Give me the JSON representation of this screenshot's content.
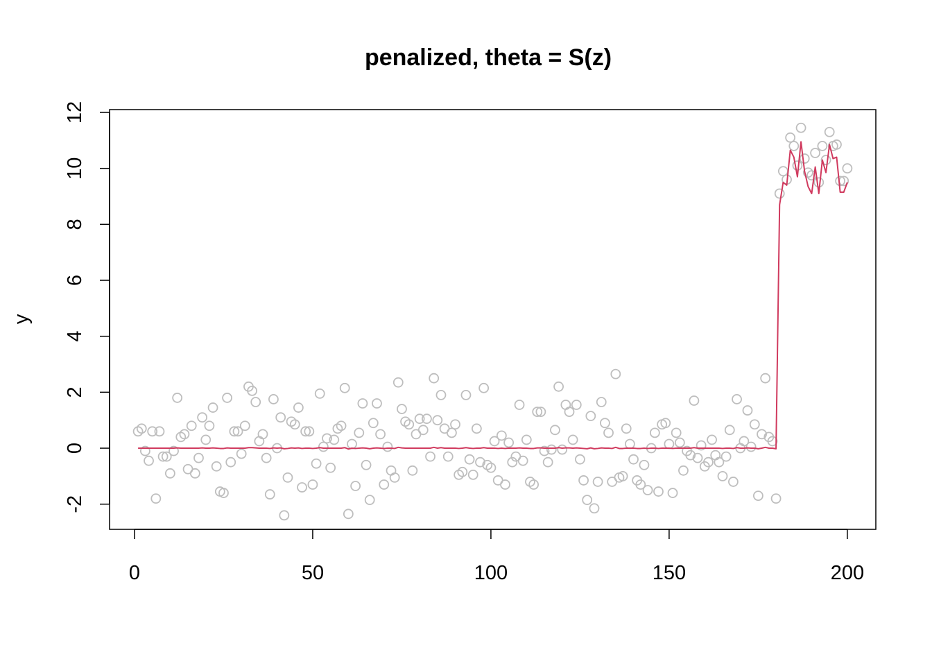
{
  "chart_data": {
    "type": "scatter",
    "title": "penalized, theta = S(z)",
    "xlabel": "",
    "ylabel": "y",
    "xlim": [
      -7,
      208
    ],
    "ylim": [
      -2.9,
      12.1
    ],
    "xticks": [
      0,
      50,
      100,
      150,
      200
    ],
    "yticks": [
      -2,
      0,
      2,
      4,
      6,
      8,
      10,
      12
    ],
    "grid": false,
    "legend": "none",
    "colors": {
      "points": "#bebebe",
      "line": "#d03a5e",
      "axes": "#000000"
    },
    "series": [
      {
        "kind": "points",
        "x": [
          1,
          2,
          3,
          4,
          5,
          6,
          7,
          8,
          9,
          10,
          11,
          12,
          13,
          14,
          15,
          16,
          17,
          18,
          19,
          20,
          21,
          22,
          23,
          24,
          25,
          26,
          27,
          28,
          29,
          30,
          31,
          32,
          33,
          34,
          35,
          36,
          37,
          38,
          39,
          40,
          41,
          42,
          43,
          44,
          45,
          46,
          47,
          48,
          49,
          50,
          51,
          52,
          53,
          54,
          55,
          56,
          57,
          58,
          59,
          60,
          61,
          62,
          63,
          64,
          65,
          66,
          67,
          68,
          69,
          70,
          71,
          72,
          73,
          74,
          75,
          76,
          77,
          78,
          79,
          80,
          81,
          82,
          83,
          84,
          85,
          86,
          87,
          88,
          89,
          90,
          91,
          92,
          93,
          94,
          95,
          96,
          97,
          98,
          99,
          100,
          101,
          102,
          103,
          104,
          105,
          106,
          107,
          108,
          109,
          110,
          111,
          112,
          113,
          114,
          115,
          116,
          117,
          118,
          119,
          120,
          121,
          122,
          123,
          124,
          125,
          126,
          127,
          128,
          129,
          130,
          131,
          132,
          133,
          134,
          135,
          136,
          137,
          138,
          139,
          140,
          141,
          142,
          143,
          144,
          145,
          146,
          147,
          148,
          149,
          150,
          151,
          152,
          153,
          154,
          155,
          156,
          157,
          158,
          159,
          160,
          161,
          162,
          163,
          164,
          165,
          166,
          167,
          168,
          169,
          170,
          171,
          172,
          173,
          174,
          175,
          176,
          177,
          178,
          179,
          180,
          181,
          182,
          183,
          184,
          185,
          186,
          187,
          188,
          189,
          190,
          191,
          192,
          193,
          194,
          195,
          196,
          197,
          198,
          199,
          200
        ],
        "y": [
          0.6,
          0.7,
          -0.1,
          -0.45,
          0.6,
          -1.8,
          0.6,
          -0.3,
          -0.3,
          -0.9,
          -0.1,
          1.8,
          0.4,
          0.5,
          -0.75,
          0.8,
          -0.9,
          -0.35,
          1.1,
          0.3,
          0.8,
          1.45,
          -0.65,
          -1.55,
          -1.6,
          1.8,
          -0.5,
          0.6,
          0.6,
          -0.2,
          0.8,
          2.2,
          2.05,
          1.65,
          0.25,
          0.5,
          -0.35,
          -1.65,
          1.75,
          0.0,
          1.1,
          -2.4,
          -1.05,
          0.95,
          0.85,
          1.45,
          -1.4,
          0.6,
          0.6,
          -1.3,
          -0.55,
          1.95,
          0.05,
          0.35,
          -0.7,
          0.3,
          0.7,
          0.8,
          2.15,
          -2.35,
          0.15,
          -1.35,
          0.55,
          1.6,
          -0.6,
          -1.85,
          0.9,
          1.6,
          0.5,
          -1.3,
          0.05,
          -0.8,
          -1.05,
          2.35,
          1.4,
          0.95,
          0.85,
          -0.8,
          0.5,
          1.05,
          0.65,
          1.05,
          -0.3,
          2.5,
          1.0,
          1.9,
          0.7,
          -0.3,
          0.55,
          0.85,
          -0.95,
          -0.85,
          1.9,
          -0.4,
          -0.95,
          0.7,
          -0.5,
          2.15,
          -0.6,
          -0.7,
          0.25,
          -1.15,
          0.45,
          -1.3,
          0.2,
          -0.5,
          -0.3,
          1.55,
          -0.45,
          0.3,
          -1.2,
          -1.3,
          1.3,
          1.3,
          -0.1,
          -0.5,
          -0.05,
          0.65,
          2.2,
          -0.05,
          1.55,
          1.3,
          0.3,
          1.55,
          -0.4,
          -1.15,
          -1.85,
          1.15,
          -2.15,
          -1.2,
          1.65,
          0.9,
          0.55,
          -1.2,
          2.65,
          -1.05,
          -1.0,
          0.7,
          0.15,
          -0.4,
          -1.15,
          -1.3,
          -0.6,
          -1.5,
          0.0,
          0.55,
          -1.55,
          0.85,
          0.9,
          0.15,
          -1.6,
          0.55,
          0.2,
          -0.8,
          -0.1,
          -0.25,
          1.7,
          -0.35,
          0.1,
          -0.65,
          -0.5,
          0.3,
          -0.25,
          -0.5,
          -1.0,
          -0.3,
          0.65,
          -1.2,
          1.75,
          0.0,
          0.25,
          1.35,
          0.05,
          0.85,
          -1.7,
          0.5,
          2.5,
          0.4,
          0.25,
          -1.8,
          9.1,
          9.9,
          9.6,
          11.1,
          10.8,
          10.1,
          11.45,
          10.35,
          9.85,
          9.75,
          10.55,
          9.5,
          10.8,
          10.3,
          11.3,
          10.8,
          10.85,
          9.55,
          9.55,
          10.0
        ]
      },
      {
        "kind": "line",
        "x": [
          1,
          2,
          3,
          4,
          5,
          6,
          7,
          8,
          9,
          10,
          11,
          12,
          13,
          14,
          15,
          16,
          17,
          18,
          19,
          20,
          21,
          22,
          23,
          24,
          25,
          26,
          27,
          28,
          29,
          30,
          31,
          32,
          33,
          34,
          35,
          36,
          37,
          38,
          39,
          40,
          41,
          42,
          43,
          44,
          45,
          46,
          47,
          48,
          49,
          50,
          51,
          52,
          53,
          54,
          55,
          56,
          57,
          58,
          59,
          60,
          61,
          62,
          63,
          64,
          65,
          66,
          67,
          68,
          69,
          70,
          71,
          72,
          73,
          74,
          75,
          76,
          77,
          78,
          79,
          80,
          81,
          82,
          83,
          84,
          85,
          86,
          87,
          88,
          89,
          90,
          91,
          92,
          93,
          94,
          95,
          96,
          97,
          98,
          99,
          100,
          101,
          102,
          103,
          104,
          105,
          106,
          107,
          108,
          109,
          110,
          111,
          112,
          113,
          114,
          115,
          116,
          117,
          118,
          119,
          120,
          121,
          122,
          123,
          124,
          125,
          126,
          127,
          128,
          129,
          130,
          131,
          132,
          133,
          134,
          135,
          136,
          137,
          138,
          139,
          140,
          141,
          142,
          143,
          144,
          145,
          146,
          147,
          148,
          149,
          150,
          151,
          152,
          153,
          154,
          155,
          156,
          157,
          158,
          159,
          160,
          161,
          162,
          163,
          164,
          165,
          166,
          167,
          168,
          169,
          170,
          171,
          172,
          173,
          174,
          175,
          176,
          177,
          178,
          179,
          180,
          181,
          182,
          183,
          184,
          185,
          186,
          187,
          188,
          189,
          190,
          191,
          192,
          193,
          194,
          195,
          196,
          197,
          198,
          199,
          200
        ],
        "y": [
          0.0,
          0.0,
          0.0,
          0.0,
          0.0,
          0.0,
          0.0,
          0.0,
          0.0,
          0.0,
          0.0,
          0.01,
          0.0,
          0.0,
          0.0,
          0.0,
          0.0,
          0.0,
          0.01,
          0.0,
          0.0,
          0.01,
          0.0,
          -0.01,
          -0.01,
          0.01,
          0.0,
          0.0,
          0.0,
          0.0,
          0.0,
          0.02,
          0.02,
          0.01,
          0.0,
          0.0,
          0.0,
          -0.01,
          0.01,
          0.0,
          0.01,
          -0.02,
          -0.01,
          0.01,
          0.0,
          0.01,
          -0.01,
          0.0,
          0.0,
          -0.01,
          0.0,
          0.02,
          0.0,
          0.0,
          0.0,
          0.0,
          0.0,
          0.0,
          0.02,
          -0.03,
          0.0,
          -0.01,
          0.0,
          0.01,
          0.0,
          -0.02,
          0.0,
          0.01,
          0.0,
          -0.01,
          0.0,
          0.0,
          -0.01,
          0.03,
          0.01,
          0.0,
          0.0,
          0.0,
          0.0,
          0.0,
          0.0,
          0.0,
          0.0,
          0.03,
          0.0,
          0.02,
          0.0,
          0.0,
          0.0,
          0.0,
          -0.01,
          0.0,
          0.02,
          0.0,
          -0.01,
          0.0,
          0.0,
          0.02,
          0.0,
          0.0,
          0.0,
          -0.01,
          0.0,
          -0.01,
          0.0,
          0.0,
          0.0,
          0.01,
          0.0,
          0.0,
          -0.01,
          -0.01,
          0.01,
          0.01,
          0.0,
          0.0,
          0.0,
          0.0,
          0.02,
          0.0,
          0.01,
          0.01,
          0.0,
          0.01,
          0.0,
          -0.01,
          -0.02,
          0.01,
          -0.02,
          -0.01,
          0.01,
          0.0,
          0.0,
          -0.01,
          0.03,
          -0.01,
          -0.01,
          0.0,
          0.0,
          0.0,
          -0.01,
          -0.01,
          0.0,
          -0.01,
          0.0,
          0.0,
          -0.01,
          0.0,
          0.0,
          0.0,
          -0.01,
          0.0,
          0.0,
          0.0,
          0.0,
          0.0,
          0.02,
          0.0,
          0.0,
          0.0,
          0.0,
          0.0,
          0.0,
          0.0,
          -0.01,
          0.0,
          0.0,
          -0.01,
          0.02,
          0.0,
          0.0,
          0.01,
          0.0,
          0.0,
          -0.02,
          0.0,
          0.03,
          0.0,
          0.0,
          -0.02,
          8.7,
          9.5,
          9.4,
          10.65,
          10.4,
          9.7,
          10.95,
          9.9,
          9.35,
          9.1,
          10.05,
          9.1,
          10.3,
          9.85,
          10.85,
          10.35,
          10.4,
          9.15,
          9.15,
          9.5
        ]
      }
    ]
  }
}
